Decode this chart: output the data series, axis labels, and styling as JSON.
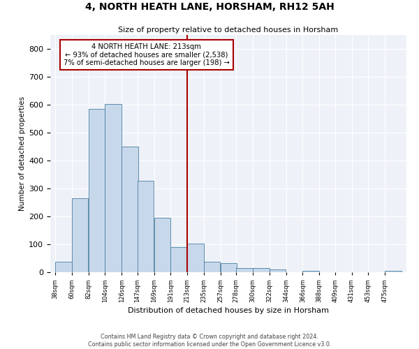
{
  "title": "4, NORTH HEATH LANE, HORSHAM, RH12 5AH",
  "subtitle": "Size of property relative to detached houses in Horsham",
  "xlabel": "Distribution of detached houses by size in Horsham",
  "ylabel": "Number of detached properties",
  "bins": [
    38,
    60,
    82,
    104,
    126,
    147,
    169,
    191,
    213,
    235,
    257,
    278,
    300,
    322,
    344,
    366,
    388,
    409,
    431,
    453,
    475
  ],
  "values": [
    37,
    265,
    585,
    603,
    450,
    328,
    195,
    90,
    103,
    38,
    33,
    15,
    15,
    10,
    0,
    5,
    0,
    0,
    0,
    0,
    5
  ],
  "bar_color": "#c8d8eb",
  "bar_edge_color": "#4a7fa0",
  "vline_x": 213,
  "vline_color": "#aa0000",
  "annotation_box_color": "#aa0000",
  "annotation_title": "4 NORTH HEATH LANE: 213sqm",
  "annotation_line1": "← 93% of detached houses are smaller (2,538)",
  "annotation_line2": "7% of semi-detached houses are larger (198) →",
  "ylim": [
    0,
    850
  ],
  "yticks": [
    0,
    100,
    200,
    300,
    400,
    500,
    600,
    700,
    800
  ],
  "bg_color": "#eef2f8",
  "fig_color": "#ffffff",
  "grid_color": "#ffffff",
  "footer_line1": "Contains HM Land Registry data © Crown copyright and database right 2024.",
  "footer_line2": "Contains public sector information licensed under the Open Government Licence v3.0."
}
